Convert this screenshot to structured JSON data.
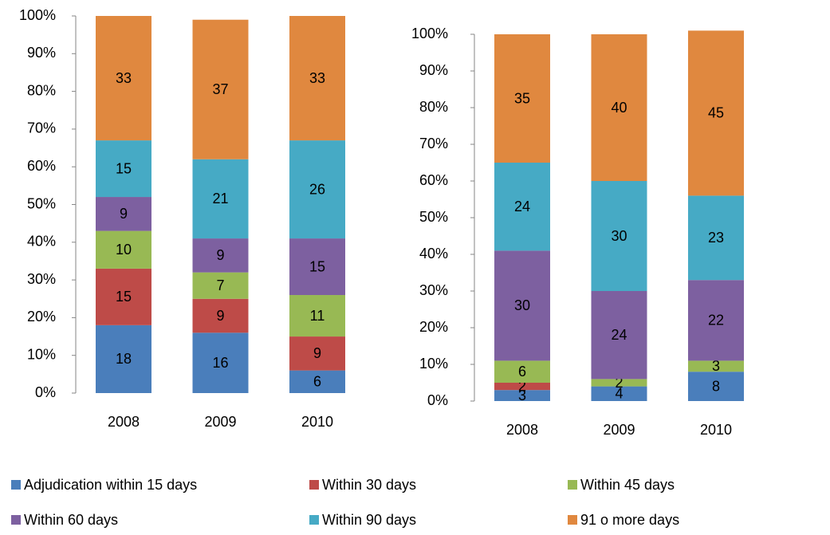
{
  "legend": [
    {
      "name": "Adjudication within 15 days",
      "color": "#4a7ebb"
    },
    {
      "name": "Within 30 days",
      "color": "#be4b48"
    },
    {
      "name": "Within 45 days",
      "color": "#98b954"
    },
    {
      "name": "Within 60 days",
      "color": "#7d60a0"
    },
    {
      "name": "Within 90 days",
      "color": "#46aac5"
    },
    {
      "name": "91 o more days",
      "color": "#e0883f"
    }
  ],
  "chart_data": [
    {
      "type": "stacked_bar",
      "categories": [
        "2008",
        "2009",
        "2010"
      ],
      "ylim": [
        0,
        100
      ],
      "yticks": [
        {
          "value": 0,
          "label": "0%"
        },
        {
          "value": 10,
          "label": "10%"
        },
        {
          "value": 20,
          "label": "20%"
        },
        {
          "value": 30,
          "label": "30%"
        },
        {
          "value": 40,
          "label": "40%"
        },
        {
          "value": 50,
          "label": "50%"
        },
        {
          "value": 60,
          "label": "60%"
        },
        {
          "value": 70,
          "label": "70%"
        },
        {
          "value": 80,
          "label": "80%"
        },
        {
          "value": 90,
          "label": "90%"
        },
        {
          "value": 100,
          "label": "100%"
        }
      ],
      "series": [
        {
          "values": [
            18,
            16,
            6
          ]
        },
        {
          "values": [
            15,
            9,
            9
          ]
        },
        {
          "values": [
            10,
            7,
            11
          ]
        },
        {
          "values": [
            9,
            9,
            15
          ]
        },
        {
          "values": [
            15,
            21,
            26
          ]
        },
        {
          "values": [
            33,
            37,
            33
          ]
        }
      ]
    },
    {
      "type": "stacked_bar",
      "categories": [
        "2008",
        "2009",
        "2010"
      ],
      "ylim": [
        0,
        100
      ],
      "yticks": [
        {
          "value": 0,
          "label": "0%"
        },
        {
          "value": 10,
          "label": "10%"
        },
        {
          "value": 20,
          "label": "20%"
        },
        {
          "value": 30,
          "label": "30%"
        },
        {
          "value": 40,
          "label": "40%"
        },
        {
          "value": 50,
          "label": "50%"
        },
        {
          "value": 60,
          "label": "60%"
        },
        {
          "value": 70,
          "label": "70%"
        },
        {
          "value": 80,
          "label": "80%"
        },
        {
          "value": 90,
          "label": "90%"
        },
        {
          "value": 100,
          "label": "100%"
        }
      ],
      "series": [
        {
          "values": [
            3,
            4,
            8
          ]
        },
        {
          "values": [
            2,
            null,
            null
          ]
        },
        {
          "values": [
            6,
            2,
            3
          ]
        },
        {
          "values": [
            30,
            24,
            22
          ]
        },
        {
          "values": [
            24,
            30,
            23
          ]
        },
        {
          "values": [
            35,
            40,
            45
          ]
        }
      ]
    }
  ]
}
